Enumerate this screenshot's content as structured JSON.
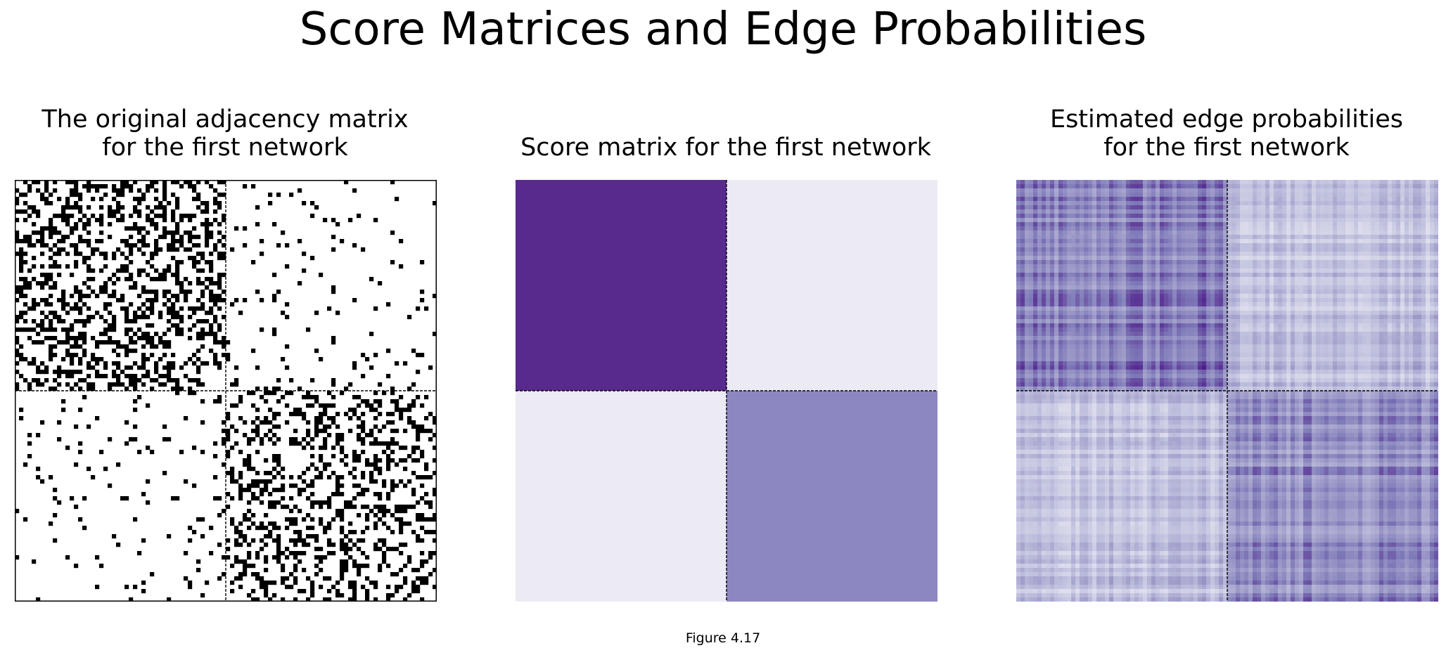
{
  "figure": {
    "suptitle": "Score Matrices and Edge Probabilities",
    "caption": "Figure 4.17"
  },
  "chart_data": [
    {
      "type": "heatmap",
      "title": "The original adjacency matrix\nfor the first network",
      "matrix_size": 100,
      "blocks": 2,
      "block_boundary": 50,
      "colormap": "binary",
      "colors": {
        "edge": "#000000",
        "no_edge": "#ffffff"
      },
      "block_edge_density": [
        [
          0.4,
          0.05
        ],
        [
          0.05,
          0.3
        ]
      ],
      "ticks": false,
      "border": true
    },
    {
      "type": "heatmap",
      "title": "Score matrix for the first network",
      "matrix_size": 100,
      "blocks": 2,
      "block_boundary": 50,
      "colormap": "Purples",
      "block_values": [
        [
          1.0,
          0.1
        ],
        [
          0.1,
          0.55
        ]
      ],
      "block_colors": [
        [
          "#582a8e",
          "#ecebf5"
        ],
        [
          "#ecebf5",
          "#8c87c0"
        ]
      ],
      "ticks": false,
      "border": false
    },
    {
      "type": "heatmap",
      "title": "Estimated edge probabilities\nfor the first network",
      "matrix_size": 100,
      "blocks": 2,
      "block_boundary": 50,
      "colormap": "Purples",
      "block_mean_probability": [
        [
          0.4,
          0.1
        ],
        [
          0.1,
          0.35
        ]
      ],
      "block_mean_colors": [
        [
          "#8c86c0",
          "#d3d3e8"
        ],
        [
          "#c9c9e3",
          "#8e88c2"
        ]
      ],
      "ticks": false,
      "border": false
    }
  ]
}
